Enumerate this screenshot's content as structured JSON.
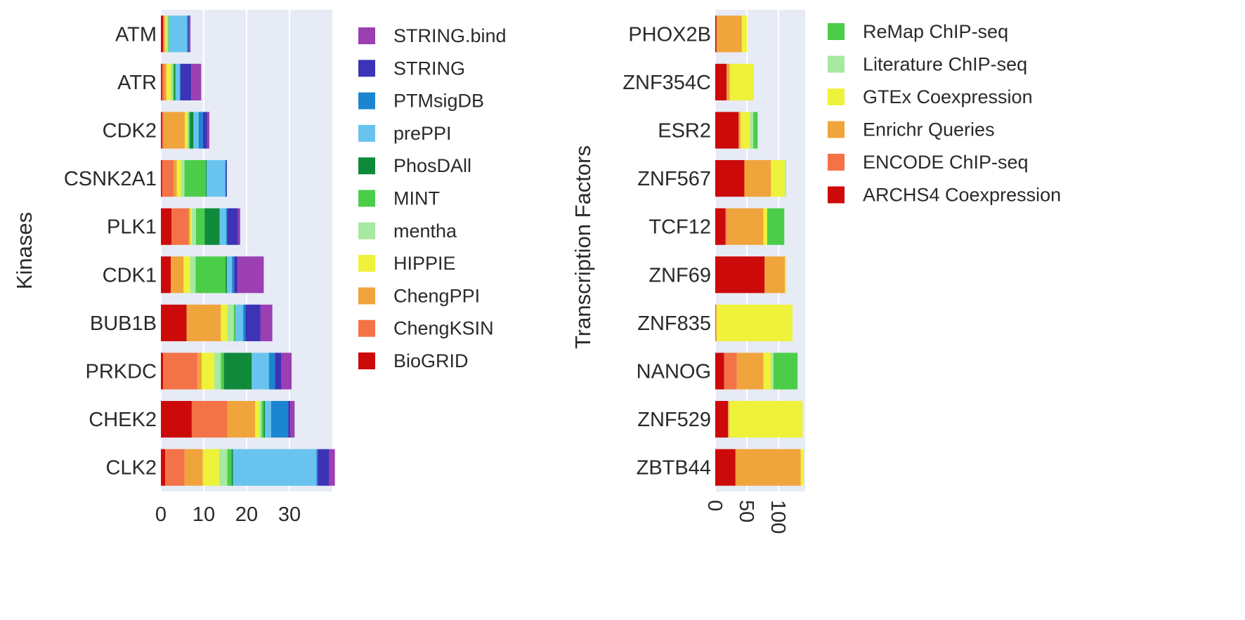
{
  "chart_data": [
    {
      "type": "bar",
      "orientation": "horizontal",
      "stacked": true,
      "ylabel": "Kinases",
      "xlabel": "",
      "xlim": [
        0,
        40
      ],
      "xticks": [
        "0",
        "10",
        "20",
        "30"
      ],
      "xtick_values": [
        0,
        10,
        20,
        30
      ],
      "grid": true,
      "legend_position": "right",
      "plot_background": "#e6ebf5",
      "categories": [
        "ATM",
        "ATR",
        "CDK2",
        "CSNK2A1",
        "PLK1",
        "CDK1",
        "BUB1B",
        "PRKDC",
        "CHEK2",
        "CLK2"
      ],
      "series": [
        {
          "name": "BioGRID",
          "color": "#cc0a0a",
          "values": [
            0.5,
            0.3,
            0.3,
            0.3,
            2.5,
            2.3,
            6.0,
            0.5,
            7.2,
            1.0
          ]
        },
        {
          "name": "ChengKSIN",
          "color": "#f47247",
          "values": [
            0.2,
            0.5,
            0.3,
            2.7,
            4.0,
            0,
            0,
            8.0,
            8.3,
            4.5
          ]
        },
        {
          "name": "ChengPPI",
          "color": "#f0a43c",
          "values": [
            0.3,
            0.5,
            5.0,
            0.7,
            0.3,
            3.0,
            8.0,
            1.0,
            6.5,
            4.3
          ]
        },
        {
          "name": "HIPPIE",
          "color": "#eef23a",
          "values": [
            0.3,
            1.0,
            0.5,
            1.0,
            0.4,
            1.5,
            1.5,
            3.0,
            1.0,
            3.8
          ]
        },
        {
          "name": "mentha",
          "color": "#a6e9a0",
          "values": [
            0.4,
            0.5,
            0.4,
            0.8,
            1.0,
            1.3,
            1.5,
            1.5,
            0.5,
            1.9
          ]
        },
        {
          "name": "MINT",
          "color": "#4ccd4a",
          "values": [
            0.2,
            0.3,
            0.3,
            5.0,
            2.0,
            7.0,
            0.5,
            0.7,
            0.5,
            1.0
          ]
        },
        {
          "name": "PhosDAll",
          "color": "#0f8a3b",
          "values": [
            0,
            0.3,
            0.8,
            0.2,
            3.5,
            0.3,
            0,
            6.5,
            0.3,
            0.3
          ]
        },
        {
          "name": "prePPI",
          "color": "#68c4ef",
          "values": [
            4.2,
            1.0,
            1.2,
            4.3,
            1.5,
            1.2,
            1.7,
            4.0,
            1.4,
            19.5
          ]
        },
        {
          "name": "PTMsigDB",
          "color": "#1b86cf",
          "values": [
            0.3,
            0.2,
            1.0,
            0.2,
            0.3,
            0.5,
            0.5,
            1.4,
            4.0,
            0.3
          ]
        },
        {
          "name": "STRING",
          "color": "#3c33b6",
          "values": [
            0.2,
            2.5,
            1.0,
            0.2,
            2.5,
            0.8,
            3.5,
            1.5,
            0.5,
            2.7
          ]
        },
        {
          "name": "STRING.bind",
          "color": "#9b3fb2",
          "values": [
            0.3,
            2.3,
            0.5,
            0,
            0.5,
            6.1,
            2.8,
            2.4,
            1.0,
            1.3
          ]
        }
      ]
    },
    {
      "type": "bar",
      "orientation": "horizontal",
      "stacked": true,
      "ylabel": "Transcription Factors",
      "xlabel": "",
      "xlim": [
        0,
        142
      ],
      "xticks": [
        "0",
        "50",
        "100"
      ],
      "xtick_values": [
        0,
        50,
        100
      ],
      "xtick_rotation": 90,
      "grid": true,
      "legend_position": "right",
      "plot_background": "#e6ebf5",
      "categories": [
        "PHOX2B",
        "ZNF354C",
        "ESR2",
        "ZNF567",
        "TCF12",
        "ZNF69",
        "ZNF835",
        "NANOG",
        "ZNF529",
        "ZBTB44"
      ],
      "series": [
        {
          "name": "ARCHS4 Coexpression",
          "color": "#cc0a0a",
          "values": [
            2,
            18,
            37,
            46,
            16,
            78,
            0,
            14,
            20,
            32
          ]
        },
        {
          "name": "ENCODE ChIP-seq",
          "color": "#f47247",
          "values": [
            0,
            0,
            0,
            0,
            2,
            0,
            2,
            20,
            0,
            0
          ]
        },
        {
          "name": "Enrichr Queries",
          "color": "#f0a43c",
          "values": [
            40,
            5,
            3,
            42,
            58,
            32,
            0,
            42,
            2,
            103
          ]
        },
        {
          "name": "GTEx Coexpression",
          "color": "#eef23a",
          "values": [
            8,
            38,
            15,
            22,
            6,
            2,
            120,
            12,
            116,
            5
          ]
        },
        {
          "name": "Literature ChIP-seq",
          "color": "#a6e9a0",
          "values": [
            0,
            0,
            5,
            2,
            0,
            0,
            0,
            4,
            0,
            0
          ]
        },
        {
          "name": "ReMap ChIP-seq",
          "color": "#4ccd4a",
          "values": [
            0,
            0,
            7,
            0,
            27,
            0,
            0,
            38,
            0,
            0
          ]
        }
      ]
    }
  ]
}
